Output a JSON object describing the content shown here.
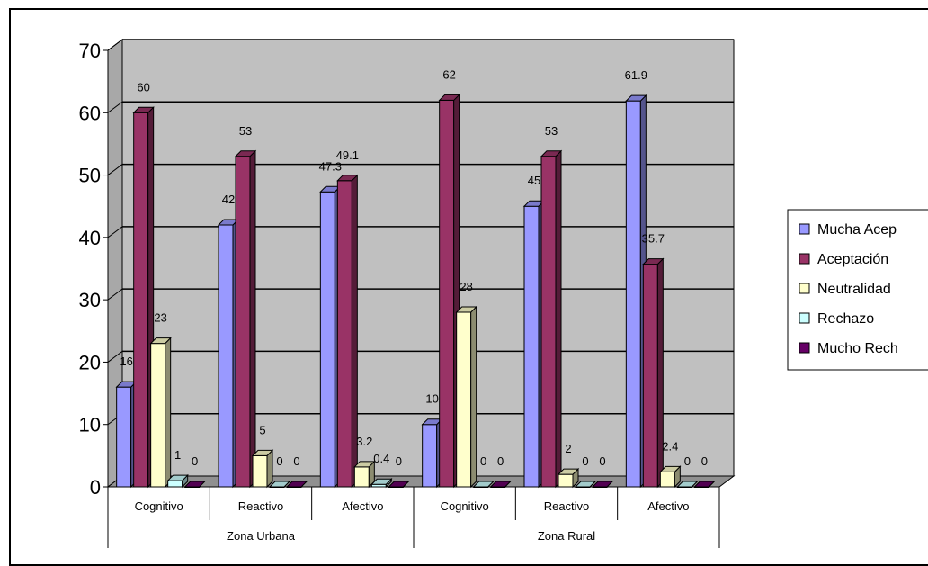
{
  "chart_data": {
    "type": "bar",
    "groups": [
      {
        "label": "Zona Urbana",
        "categories": [
          "Cognitivo",
          "Reactivo",
          "Afectivo"
        ]
      },
      {
        "label": "Zona Rural",
        "categories": [
          "Cognitivo",
          "Reactivo",
          "Afectivo"
        ]
      }
    ],
    "categories": [
      "Cognitivo",
      "Reactivo",
      "Afectivo",
      "Cognitivo",
      "Reactivo",
      "Afectivo"
    ],
    "series": [
      {
        "name": "Mucha Acep",
        "color": "#9999ff",
        "values": [
          16,
          42,
          47.3,
          10,
          45,
          61.9
        ],
        "labels": [
          "16",
          "42",
          "47.3",
          "10",
          "45",
          "61.9"
        ]
      },
      {
        "name": "Aceptación",
        "color": "#993366",
        "values": [
          60,
          53,
          49.1,
          62,
          53,
          35.7
        ],
        "labels": [
          "60",
          "53",
          "49.1",
          "62",
          "53",
          "35.7"
        ]
      },
      {
        "name": "Neutralidad",
        "color": "#ffffcc",
        "values": [
          23,
          5,
          3.2,
          28,
          2,
          2.4
        ],
        "labels": [
          "23",
          "5",
          "3.2",
          "28",
          "2",
          "2.4"
        ]
      },
      {
        "name": "Rechazo",
        "color": "#ccffff",
        "values": [
          1,
          0,
          0.4,
          0,
          0,
          0
        ],
        "labels": [
          "1",
          "0",
          "0.4",
          "0",
          "0",
          "0"
        ]
      },
      {
        "name": "Mucho Rech",
        "color": "#660066",
        "values": [
          0,
          0,
          0,
          0,
          0,
          0
        ],
        "labels": [
          "0",
          "0",
          "0",
          "0",
          "0",
          "0"
        ]
      }
    ],
    "yticks": [
      "0",
      "10",
      "20",
      "30",
      "40",
      "50",
      "60",
      "70"
    ],
    "ylim": [
      0,
      70
    ],
    "grid": true,
    "legend": "right",
    "wall_color": "#c0c0c0"
  }
}
